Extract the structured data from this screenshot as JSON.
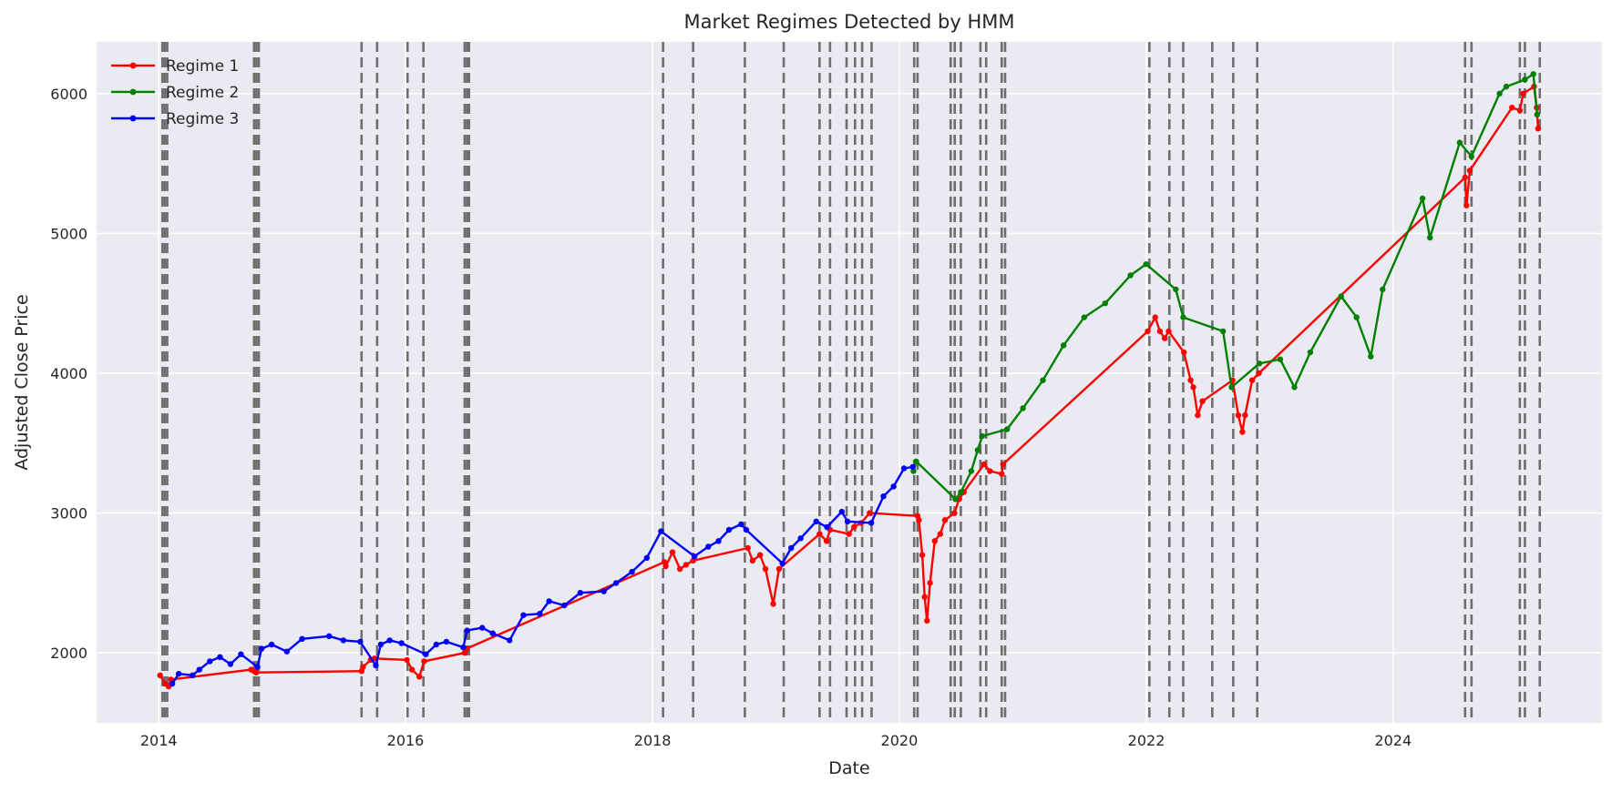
{
  "chart_data": {
    "type": "line",
    "title": "Market Regimes Detected by HMM",
    "xlabel": "Date",
    "ylabel": "Adjusted Close Price",
    "x_is_date": true,
    "xlim": [
      "2013-07-01",
      "2025-09-10"
    ],
    "ylim": [
      1500,
      6370
    ],
    "xticks": [
      {
        "date": "2014-01-01",
        "label": "2014"
      },
      {
        "date": "2016-01-01",
        "label": "2016"
      },
      {
        "date": "2018-01-01",
        "label": "2018"
      },
      {
        "date": "2020-01-01",
        "label": "2020"
      },
      {
        "date": "2022-01-01",
        "label": "2022"
      },
      {
        "date": "2024-01-01",
        "label": "2024"
      }
    ],
    "yticks": [
      2000,
      3000,
      4000,
      5000,
      6000
    ],
    "grid": true,
    "legend_position": "upper-left",
    "colors": {
      "background": "#eaeaf2",
      "grid": "#ffffff",
      "vline": "#6e6e6e"
    },
    "series": [
      {
        "name": "Regime 1",
        "color": "#ff0000",
        "x": [
          "2014-01-05",
          "2014-01-20",
          "2014-01-30",
          "2014-02-06",
          "2014-10-01",
          "2014-10-10",
          "2014-10-16",
          "2015-08-24",
          "2015-08-28",
          "2015-09-20",
          "2015-10-01",
          "2016-01-05",
          "2016-01-20",
          "2016-02-11",
          "2016-02-25",
          "2016-06-24",
          "2016-06-29",
          "2018-02-05",
          "2018-02-09",
          "2018-03-01",
          "2018-03-23",
          "2018-04-10",
          "2018-05-01",
          "2018-10-10",
          "2018-10-24",
          "2018-11-15",
          "2018-12-01",
          "2018-12-24",
          "2019-01-10",
          "2019-05-10",
          "2019-05-31",
          "2019-06-10",
          "2019-08-05",
          "2019-08-20",
          "2019-09-10",
          "2019-10-05",
          "2020-02-24",
          "2020-02-28",
          "2020-03-09",
          "2020-03-16",
          "2020-03-23",
          "2020-04-01",
          "2020-04-15",
          "2020-05-01",
          "2020-05-15",
          "2020-06-12",
          "2020-06-26",
          "2020-07-10",
          "2020-09-08",
          "2020-09-25",
          "2020-10-30",
          "2020-11-03",
          "2022-01-05",
          "2022-01-27",
          "2022-02-10",
          "2022-02-24",
          "2022-03-08",
          "2022-04-22",
          "2022-05-12",
          "2022-05-20",
          "2022-06-02",
          "2022-06-16",
          "2022-09-13",
          "2022-09-30",
          "2022-10-12",
          "2022-10-20",
          "2022-11-10",
          "2022-11-30",
          "2024-08-01",
          "2024-08-05",
          "2024-08-15",
          "2024-12-18",
          "2025-01-10",
          "2025-01-20",
          "2025-02-21",
          "2025-03-01",
          "2025-03-05"
        ],
        "y": [
          1840,
          1780,
          1760,
          1810,
          1880,
          1870,
          1860,
          1870,
          1900,
          1950,
          1960,
          1950,
          1880,
          1830,
          1940,
          2000,
          2030,
          2650,
          2620,
          2720,
          2600,
          2630,
          2660,
          2750,
          2660,
          2700,
          2600,
          2350,
          2600,
          2850,
          2800,
          2880,
          2850,
          2900,
          2930,
          3000,
          2980,
          2950,
          2700,
          2400,
          2230,
          2500,
          2800,
          2850,
          2950,
          3000,
          3100,
          3150,
          3350,
          3300,
          3280,
          3350,
          4300,
          4400,
          4300,
          4250,
          4300,
          4150,
          3950,
          3900,
          3700,
          3800,
          3950,
          3700,
          3580,
          3700,
          3950,
          4000,
          5400,
          5200,
          5450,
          5900,
          5880,
          6000,
          6050,
          5900,
          5750
        ]
      },
      {
        "name": "Regime 2",
        "color": "#008000",
        "x": [
          "2020-02-12",
          "2020-02-20",
          "2020-06-15",
          "2020-07-01",
          "2020-08-01",
          "2020-08-20",
          "2020-09-02",
          "2020-11-15",
          "2021-01-01",
          "2021-03-01",
          "2021-05-01",
          "2021-07-01",
          "2021-09-01",
          "2021-11-15",
          "2021-12-31",
          "2022-03-29",
          "2022-04-20",
          "2022-08-16",
          "2022-09-10",
          "2022-12-01",
          "2023-02-01",
          "2023-03-15",
          "2023-05-01",
          "2023-07-31",
          "2023-09-15",
          "2023-10-27",
          "2023-12-01",
          "2024-03-28",
          "2024-04-19",
          "2024-07-16",
          "2024-08-20",
          "2024-11-11",
          "2024-12-01",
          "2025-01-25",
          "2025-02-19",
          "2025-03-02"
        ],
        "y": [
          3300,
          3370,
          3100,
          3150,
          3300,
          3450,
          3550,
          3600,
          3750,
          3950,
          4200,
          4400,
          4500,
          4700,
          4780,
          4600,
          4400,
          4300,
          3900,
          4070,
          4100,
          3900,
          4150,
          4550,
          4400,
          4120,
          4600,
          5250,
          4970,
          5650,
          5550,
          6000,
          6050,
          6100,
          6140,
          5850
        ]
      },
      {
        "name": "Regime 3",
        "color": "#0000ff",
        "x": [
          "2014-02-10",
          "2014-03-01",
          "2014-04-11",
          "2014-05-01",
          "2014-06-01",
          "2014-07-01",
          "2014-08-01",
          "2014-09-01",
          "2014-10-20",
          "2014-11-01",
          "2014-12-01",
          "2015-01-15",
          "2015-03-01",
          "2015-05-20",
          "2015-07-01",
          "2015-08-20",
          "2015-10-05",
          "2015-10-20",
          "2015-11-15",
          "2015-12-20",
          "2016-03-01",
          "2016-04-01",
          "2016-05-01",
          "2016-06-20",
          "2016-07-01",
          "2016-08-15",
          "2016-09-15",
          "2016-11-04",
          "2016-12-15",
          "2017-02-01",
          "2017-03-01",
          "2017-04-15",
          "2017-06-01",
          "2017-08-10",
          "2017-09-15",
          "2017-11-01",
          "2017-12-15",
          "2018-01-26",
          "2018-05-05",
          "2018-06-15",
          "2018-07-15",
          "2018-08-15",
          "2018-09-20",
          "2018-10-05",
          "2019-01-20",
          "2019-02-15",
          "2019-03-15",
          "2019-04-30",
          "2019-06-01",
          "2019-07-15",
          "2019-08-01",
          "2019-10-10",
          "2019-11-15",
          "2019-12-15",
          "2020-01-15",
          "2020-02-10"
        ],
        "y": [
          1780,
          1850,
          1840,
          1880,
          1940,
          1970,
          1920,
          1990,
          1900,
          2030,
          2060,
          2010,
          2100,
          2120,
          2090,
          2080,
          1910,
          2060,
          2090,
          2070,
          1990,
          2060,
          2080,
          2040,
          2160,
          2180,
          2140,
          2090,
          2270,
          2280,
          2370,
          2340,
          2430,
          2440,
          2500,
          2580,
          2680,
          2870,
          2690,
          2760,
          2800,
          2880,
          2920,
          2880,
          2640,
          2750,
          2820,
          2940,
          2900,
          3010,
          2940,
          2930,
          3120,
          3190,
          3320,
          3330
        ]
      }
    ],
    "regime_change_dates": [
      "2014-01-12",
      "2014-01-19",
      "2014-01-26",
      "2014-10-10",
      "2014-10-17",
      "2014-10-24",
      "2015-08-24",
      "2015-10-09",
      "2016-01-07",
      "2016-02-23",
      "2016-06-24",
      "2016-07-01",
      "2016-07-07",
      "2018-02-01",
      "2018-05-01",
      "2018-10-01",
      "2019-01-24",
      "2019-05-10",
      "2019-06-10",
      "2019-07-29",
      "2019-08-23",
      "2019-09-13",
      "2019-10-11",
      "2020-02-14",
      "2020-02-24",
      "2020-06-01",
      "2020-06-13",
      "2020-07-01",
      "2020-08-28",
      "2020-09-14",
      "2020-10-30",
      "2020-11-09",
      "2022-01-10",
      "2022-03-10",
      "2022-04-20",
      "2022-07-15",
      "2022-09-15",
      "2022-11-25",
      "2024-08-01",
      "2024-08-20",
      "2025-01-10",
      "2025-01-25",
      "2025-03-10"
    ],
    "legend": [
      {
        "label": "Regime 1",
        "color": "#ff0000"
      },
      {
        "label": "Regime 2",
        "color": "#008000"
      },
      {
        "label": "Regime 3",
        "color": "#0000ff"
      }
    ]
  }
}
